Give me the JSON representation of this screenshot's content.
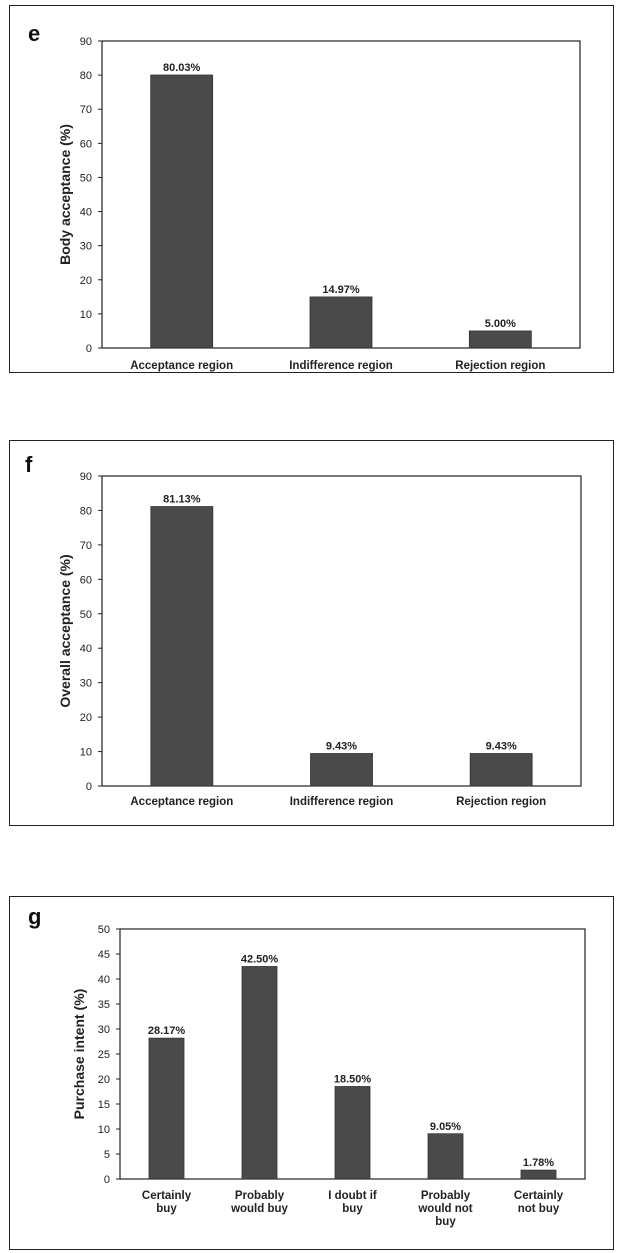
{
  "chart_data": [
    {
      "panel_label": "e",
      "type": "bar",
      "ylabel": "Body acceptance (%)",
      "ylim": [
        0,
        90
      ],
      "yticks": [
        0,
        10,
        20,
        30,
        40,
        50,
        60,
        70,
        80,
        90
      ],
      "categories": [
        [
          "Acceptance region"
        ],
        [
          "Indifference region"
        ],
        [
          "Rejection region"
        ]
      ],
      "values": [
        80.03,
        14.97,
        5.0
      ],
      "data_labels": [
        "80.03%",
        "14.97%",
        "5.00%"
      ],
      "bar_color": "#4a4a4a",
      "grid": false,
      "legend": "none"
    },
    {
      "panel_label": "f",
      "type": "bar",
      "ylabel": "Overall  acceptance (%)",
      "ylim": [
        0,
        90
      ],
      "yticks": [
        0,
        10,
        20,
        30,
        40,
        50,
        60,
        70,
        80,
        90
      ],
      "categories": [
        [
          "Acceptance region"
        ],
        [
          "Indifference region"
        ],
        [
          "Rejection region"
        ]
      ],
      "values": [
        81.13,
        9.43,
        9.43
      ],
      "data_labels": [
        "81.13%",
        "9.43%",
        "9.43%"
      ],
      "bar_color": "#4a4a4a",
      "grid": false,
      "legend": "none"
    },
    {
      "panel_label": "g",
      "type": "bar",
      "ylabel": "Purchase intent  (%)",
      "ylim": [
        0,
        50
      ],
      "yticks": [
        0,
        5,
        10,
        15,
        20,
        25,
        30,
        35,
        40,
        45,
        50
      ],
      "categories": [
        [
          "Certainly",
          "buy"
        ],
        [
          "Probably",
          "would buy"
        ],
        [
          "I doubt if",
          "buy"
        ],
        [
          "Probably",
          "would not",
          "buy"
        ],
        [
          "Certainly",
          "not buy"
        ]
      ],
      "values": [
        28.17,
        42.5,
        18.5,
        9.05,
        1.78
      ],
      "data_labels": [
        "28.17%",
        "42.50%",
        "18.50%",
        "9.05%",
        "1.78%"
      ],
      "bar_color": "#4a4a4a",
      "grid": false,
      "legend": "none"
    }
  ]
}
